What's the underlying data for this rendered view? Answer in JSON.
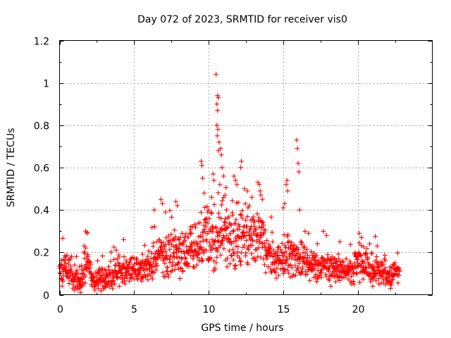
{
  "chart_data": {
    "type": "scatter",
    "title": "Day 072 of 2023, SRMTID for receiver vis0",
    "xlabel": "GPS time / hours",
    "ylabel": "SRMTID / TECUs",
    "xlim": [
      0,
      25
    ],
    "ylim": [
      0,
      1.2
    ],
    "x_ticks": [
      0,
      5,
      10,
      15,
      20
    ],
    "y_ticks": [
      0,
      0.2,
      0.4,
      0.6,
      0.8,
      1,
      1.2
    ],
    "x_tick_labels": [
      "0",
      "5",
      "10",
      "15",
      "20"
    ],
    "y_tick_labels": [
      "0",
      "0.2",
      "0.4",
      "0.6",
      "0.8",
      "1",
      "1.2"
    ],
    "grid": true,
    "marker": "+",
    "series_color": "#ff0000",
    "x_data_extent": [
      0,
      22.8
    ],
    "envelope": [
      {
        "t": 0.0,
        "base": 0.1,
        "spread": 0.07
      },
      {
        "t": 0.5,
        "base": 0.12,
        "spread": 0.07
      },
      {
        "t": 1.0,
        "base": 0.08,
        "spread": 0.05
      },
      {
        "t": 1.5,
        "base": 0.09,
        "spread": 0.05
      },
      {
        "t": 1.8,
        "base": 0.17,
        "spread": 0.1
      },
      {
        "t": 2.2,
        "base": 0.07,
        "spread": 0.04
      },
      {
        "t": 3.0,
        "base": 0.08,
        "spread": 0.05
      },
      {
        "t": 3.7,
        "base": 0.11,
        "spread": 0.07
      },
      {
        "t": 4.5,
        "base": 0.12,
        "spread": 0.06
      },
      {
        "t": 5.5,
        "base": 0.12,
        "spread": 0.05
      },
      {
        "t": 6.5,
        "base": 0.17,
        "spread": 0.1
      },
      {
        "t": 7.5,
        "base": 0.2,
        "spread": 0.1
      },
      {
        "t": 8.5,
        "base": 0.19,
        "spread": 0.09
      },
      {
        "t": 9.5,
        "base": 0.24,
        "spread": 0.12
      },
      {
        "t": 10.5,
        "base": 0.3,
        "spread": 0.18
      },
      {
        "t": 11.5,
        "base": 0.26,
        "spread": 0.12
      },
      {
        "t": 12.5,
        "base": 0.27,
        "spread": 0.12
      },
      {
        "t": 13.5,
        "base": 0.25,
        "spread": 0.12
      },
      {
        "t": 14.5,
        "base": 0.15,
        "spread": 0.06
      },
      {
        "t": 15.2,
        "base": 0.18,
        "spread": 0.1
      },
      {
        "t": 16.0,
        "base": 0.17,
        "spread": 0.09
      },
      {
        "t": 17.0,
        "base": 0.14,
        "spread": 0.06
      },
      {
        "t": 18.0,
        "base": 0.13,
        "spread": 0.06
      },
      {
        "t": 19.0,
        "base": 0.12,
        "spread": 0.06
      },
      {
        "t": 20.2,
        "base": 0.15,
        "spread": 0.08
      },
      {
        "t": 21.0,
        "base": 0.12,
        "spread": 0.06
      },
      {
        "t": 22.0,
        "base": 0.1,
        "spread": 0.05
      },
      {
        "t": 22.8,
        "base": 0.1,
        "spread": 0.04
      }
    ],
    "peaks": [
      {
        "x": 1.75,
        "y": 0.3
      },
      {
        "x": 1.85,
        "y": 0.29
      },
      {
        "x": 1.65,
        "y": 0.23
      },
      {
        "x": 4.3,
        "y": 0.26
      },
      {
        "x": 6.35,
        "y": 0.4
      },
      {
        "x": 6.8,
        "y": 0.45
      },
      {
        "x": 6.9,
        "y": 0.43
      },
      {
        "x": 7.1,
        "y": 0.39
      },
      {
        "x": 7.8,
        "y": 0.44
      },
      {
        "x": 7.9,
        "y": 0.42
      },
      {
        "x": 8.8,
        "y": 0.32
      },
      {
        "x": 9.5,
        "y": 0.63
      },
      {
        "x": 9.55,
        "y": 0.61
      },
      {
        "x": 9.6,
        "y": 0.55
      },
      {
        "x": 9.7,
        "y": 0.48
      },
      {
        "x": 10.0,
        "y": 0.4
      },
      {
        "x": 10.2,
        "y": 0.46
      },
      {
        "x": 10.3,
        "y": 0.57
      },
      {
        "x": 10.35,
        "y": 0.54
      },
      {
        "x": 10.5,
        "y": 1.04
      },
      {
        "x": 10.6,
        "y": 0.94
      },
      {
        "x": 10.65,
        "y": 0.93
      },
      {
        "x": 10.55,
        "y": 0.9
      },
      {
        "x": 10.6,
        "y": 0.87
      },
      {
        "x": 10.55,
        "y": 0.8
      },
      {
        "x": 10.62,
        "y": 0.78
      },
      {
        "x": 10.58,
        "y": 0.75
      },
      {
        "x": 10.7,
        "y": 0.72
      },
      {
        "x": 10.65,
        "y": 0.68
      },
      {
        "x": 10.8,
        "y": 0.69
      },
      {
        "x": 10.85,
        "y": 0.66
      },
      {
        "x": 10.9,
        "y": 0.6
      },
      {
        "x": 11.0,
        "y": 0.56
      },
      {
        "x": 10.75,
        "y": 0.52
      },
      {
        "x": 11.1,
        "y": 0.47
      },
      {
        "x": 11.2,
        "y": 0.4
      },
      {
        "x": 11.7,
        "y": 0.56
      },
      {
        "x": 11.8,
        "y": 0.54
      },
      {
        "x": 11.9,
        "y": 0.52
      },
      {
        "x": 12.2,
        "y": 0.63
      },
      {
        "x": 12.15,
        "y": 0.6
      },
      {
        "x": 12.4,
        "y": 0.5
      },
      {
        "x": 12.6,
        "y": 0.49
      },
      {
        "x": 12.9,
        "y": 0.46
      },
      {
        "x": 13.3,
        "y": 0.53
      },
      {
        "x": 13.4,
        "y": 0.52
      },
      {
        "x": 13.45,
        "y": 0.49
      },
      {
        "x": 13.5,
        "y": 0.47
      },
      {
        "x": 13.6,
        "y": 0.45
      },
      {
        "x": 15.2,
        "y": 0.52
      },
      {
        "x": 15.25,
        "y": 0.54
      },
      {
        "x": 15.3,
        "y": 0.49
      },
      {
        "x": 15.1,
        "y": 0.43
      },
      {
        "x": 15.0,
        "y": 0.41
      },
      {
        "x": 15.9,
        "y": 0.73
      },
      {
        "x": 15.95,
        "y": 0.69
      },
      {
        "x": 16.0,
        "y": 0.62
      },
      {
        "x": 16.05,
        "y": 0.58
      },
      {
        "x": 16.1,
        "y": 0.4
      },
      {
        "x": 16.7,
        "y": 0.29
      },
      {
        "x": 17.9,
        "y": 0.28
      },
      {
        "x": 18.8,
        "y": 0.25
      },
      {
        "x": 20.1,
        "y": 0.29
      },
      {
        "x": 20.25,
        "y": 0.27
      },
      {
        "x": 21.3,
        "y": 0.23
      },
      {
        "x": 22.5,
        "y": 0.15
      }
    ],
    "lows": [
      {
        "x": 1.4,
        "y": 0.01
      },
      {
        "x": 1.3,
        "y": 0.03
      },
      {
        "x": 2.6,
        "y": 0.03
      },
      {
        "x": 4.0,
        "y": 0.04
      },
      {
        "x": 18.2,
        "y": 0.04
      },
      {
        "x": 19.6,
        "y": 0.05
      },
      {
        "x": 21.0,
        "y": 0.04
      },
      {
        "x": 22.2,
        "y": 0.03
      }
    ]
  }
}
